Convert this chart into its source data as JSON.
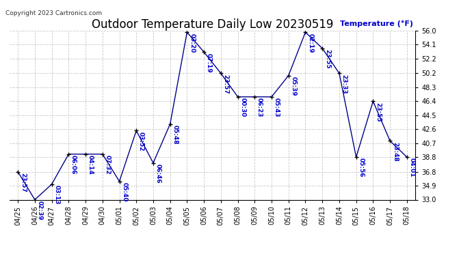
{
  "title": "Outdoor Temperature Daily Low 20230519",
  "temp_label": "Temperature (°F)",
  "copyright": "Copyright 2023 Cartronics.com",
  "background_color": "#ffffff",
  "line_color": "#00008B",
  "marker_color": "#000000",
  "text_color": "#0000CC",
  "dates": [
    "04/25",
    "04/26",
    "04/27",
    "04/28",
    "04/29",
    "04/30",
    "05/01",
    "05/02",
    "05/03",
    "05/04",
    "05/05",
    "05/06",
    "05/07",
    "05/08",
    "05/09",
    "05/10",
    "05/11",
    "05/12",
    "05/13",
    "05/14",
    "05/15",
    "05/16",
    "05/17",
    "05/18"
  ],
  "values": [
    36.8,
    33.0,
    35.1,
    39.2,
    39.2,
    39.2,
    35.5,
    42.4,
    38.0,
    43.3,
    55.8,
    53.1,
    50.2,
    47.0,
    47.0,
    47.0,
    49.9,
    55.8,
    53.6,
    50.2,
    38.8,
    46.4,
    41.0,
    38.8
  ],
  "times": [
    "23:57",
    "02:39",
    "03:13",
    "06:06",
    "04:14",
    "07:32",
    "05:40",
    "03:52",
    "06:46",
    "05:48",
    "03:20",
    "07:19",
    "23:57",
    "00:30",
    "06:23",
    "05:43",
    "05:39",
    "02:19",
    "23:55",
    "23:33",
    "05:56",
    "23:55",
    "23:48",
    "04:01"
  ],
  "ylim": [
    33.0,
    56.0
  ],
  "yticks": [
    33.0,
    34.9,
    36.8,
    38.8,
    40.7,
    42.6,
    44.5,
    46.4,
    48.3,
    50.2,
    52.2,
    54.1,
    56.0
  ],
  "grid_color": "#c8c8c8",
  "title_fontsize": 12,
  "tick_fontsize": 7,
  "annot_fontsize": 6.5
}
